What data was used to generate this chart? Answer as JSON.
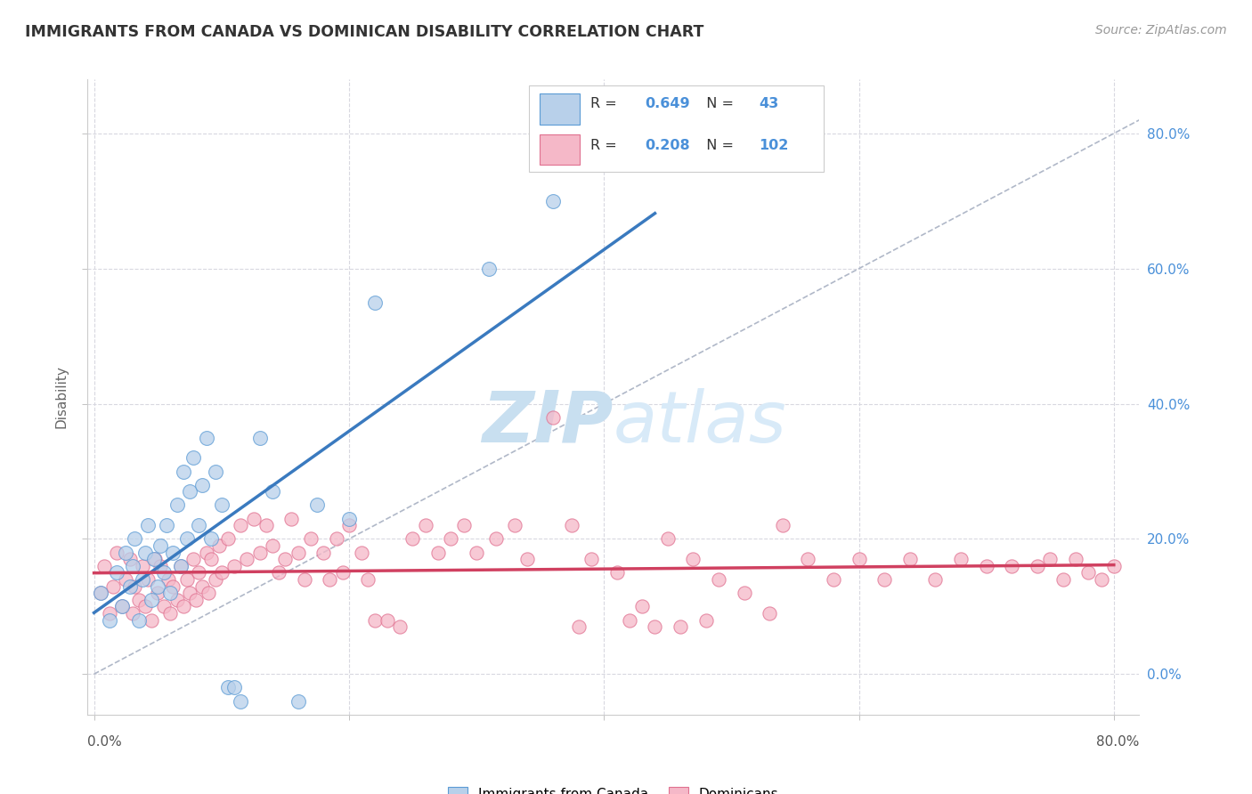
{
  "title": "IMMIGRANTS FROM CANADA VS DOMINICAN DISABILITY CORRELATION CHART",
  "source": "Source: ZipAtlas.com",
  "ylabel": "Disability",
  "xlim": [
    -0.005,
    0.82
  ],
  "ylim": [
    -0.06,
    0.88
  ],
  "yticks": [
    0.0,
    0.2,
    0.4,
    0.6,
    0.8
  ],
  "xticks": [
    0.0,
    0.2,
    0.4,
    0.6,
    0.8
  ],
  "canada_R": 0.649,
  "canada_N": 43,
  "dominican_R": 0.208,
  "dominican_N": 102,
  "canada_fill_color": "#b8d0ea",
  "dominican_fill_color": "#f5b8c8",
  "canada_edge_color": "#5b9bd5",
  "dominican_edge_color": "#e07090",
  "canada_line_color": "#3a7abf",
  "dominican_line_color": "#d04060",
  "diagonal_color": "#b0b8c8",
  "watermark_color": "#c8dff0",
  "right_axis_color": "#4a90d9",
  "legend_text_color": "#333333",
  "legend_value_color": "#4a90d9",
  "grid_color": "#d8d8e0",
  "canada_scatter_x": [
    0.005,
    0.012,
    0.018,
    0.022,
    0.025,
    0.028,
    0.03,
    0.032,
    0.035,
    0.038,
    0.04,
    0.042,
    0.045,
    0.047,
    0.05,
    0.052,
    0.055,
    0.057,
    0.06,
    0.062,
    0.065,
    0.068,
    0.07,
    0.073,
    0.075,
    0.078,
    0.082,
    0.085,
    0.088,
    0.092,
    0.095,
    0.1,
    0.105,
    0.11,
    0.115,
    0.13,
    0.14,
    0.16,
    0.175,
    0.2,
    0.22,
    0.31,
    0.36
  ],
  "canada_scatter_y": [
    0.12,
    0.08,
    0.15,
    0.1,
    0.18,
    0.13,
    0.16,
    0.2,
    0.08,
    0.14,
    0.18,
    0.22,
    0.11,
    0.17,
    0.13,
    0.19,
    0.15,
    0.22,
    0.12,
    0.18,
    0.25,
    0.16,
    0.3,
    0.2,
    0.27,
    0.32,
    0.22,
    0.28,
    0.35,
    0.2,
    0.3,
    0.25,
    -0.02,
    -0.02,
    -0.04,
    0.35,
    0.27,
    -0.04,
    0.25,
    0.23,
    0.55,
    0.6,
    0.7
  ],
  "dominican_scatter_x": [
    0.005,
    0.008,
    0.012,
    0.015,
    0.018,
    0.022,
    0.025,
    0.028,
    0.03,
    0.032,
    0.035,
    0.038,
    0.04,
    0.042,
    0.045,
    0.048,
    0.05,
    0.052,
    0.055,
    0.058,
    0.06,
    0.062,
    0.065,
    0.068,
    0.07,
    0.073,
    0.075,
    0.078,
    0.08,
    0.082,
    0.085,
    0.088,
    0.09,
    0.092,
    0.095,
    0.098,
    0.1,
    0.105,
    0.11,
    0.115,
    0.12,
    0.125,
    0.13,
    0.135,
    0.14,
    0.145,
    0.15,
    0.155,
    0.16,
    0.165,
    0.17,
    0.18,
    0.185,
    0.19,
    0.195,
    0.2,
    0.21,
    0.215,
    0.22,
    0.23,
    0.24,
    0.25,
    0.26,
    0.27,
    0.28,
    0.29,
    0.3,
    0.315,
    0.33,
    0.34,
    0.36,
    0.375,
    0.39,
    0.41,
    0.43,
    0.45,
    0.47,
    0.49,
    0.51,
    0.53,
    0.54,
    0.56,
    0.58,
    0.6,
    0.62,
    0.64,
    0.66,
    0.68,
    0.7,
    0.72,
    0.74,
    0.75,
    0.76,
    0.77,
    0.78,
    0.79,
    0.8,
    0.38,
    0.42,
    0.44,
    0.46,
    0.48
  ],
  "dominican_scatter_y": [
    0.12,
    0.16,
    0.09,
    0.13,
    0.18,
    0.1,
    0.14,
    0.17,
    0.09,
    0.13,
    0.11,
    0.16,
    0.1,
    0.14,
    0.08,
    0.17,
    0.12,
    0.16,
    0.1,
    0.14,
    0.09,
    0.13,
    0.11,
    0.16,
    0.1,
    0.14,
    0.12,
    0.17,
    0.11,
    0.15,
    0.13,
    0.18,
    0.12,
    0.17,
    0.14,
    0.19,
    0.15,
    0.2,
    0.16,
    0.22,
    0.17,
    0.23,
    0.18,
    0.22,
    0.19,
    0.15,
    0.17,
    0.23,
    0.18,
    0.14,
    0.2,
    0.18,
    0.14,
    0.2,
    0.15,
    0.22,
    0.18,
    0.14,
    0.08,
    0.08,
    0.07,
    0.2,
    0.22,
    0.18,
    0.2,
    0.22,
    0.18,
    0.2,
    0.22,
    0.17,
    0.38,
    0.22,
    0.17,
    0.15,
    0.1,
    0.2,
    0.17,
    0.14,
    0.12,
    0.09,
    0.22,
    0.17,
    0.14,
    0.17,
    0.14,
    0.17,
    0.14,
    0.17,
    0.16,
    0.16,
    0.16,
    0.17,
    0.14,
    0.17,
    0.15,
    0.14,
    0.16,
    0.07,
    0.08,
    0.07,
    0.07,
    0.08
  ]
}
